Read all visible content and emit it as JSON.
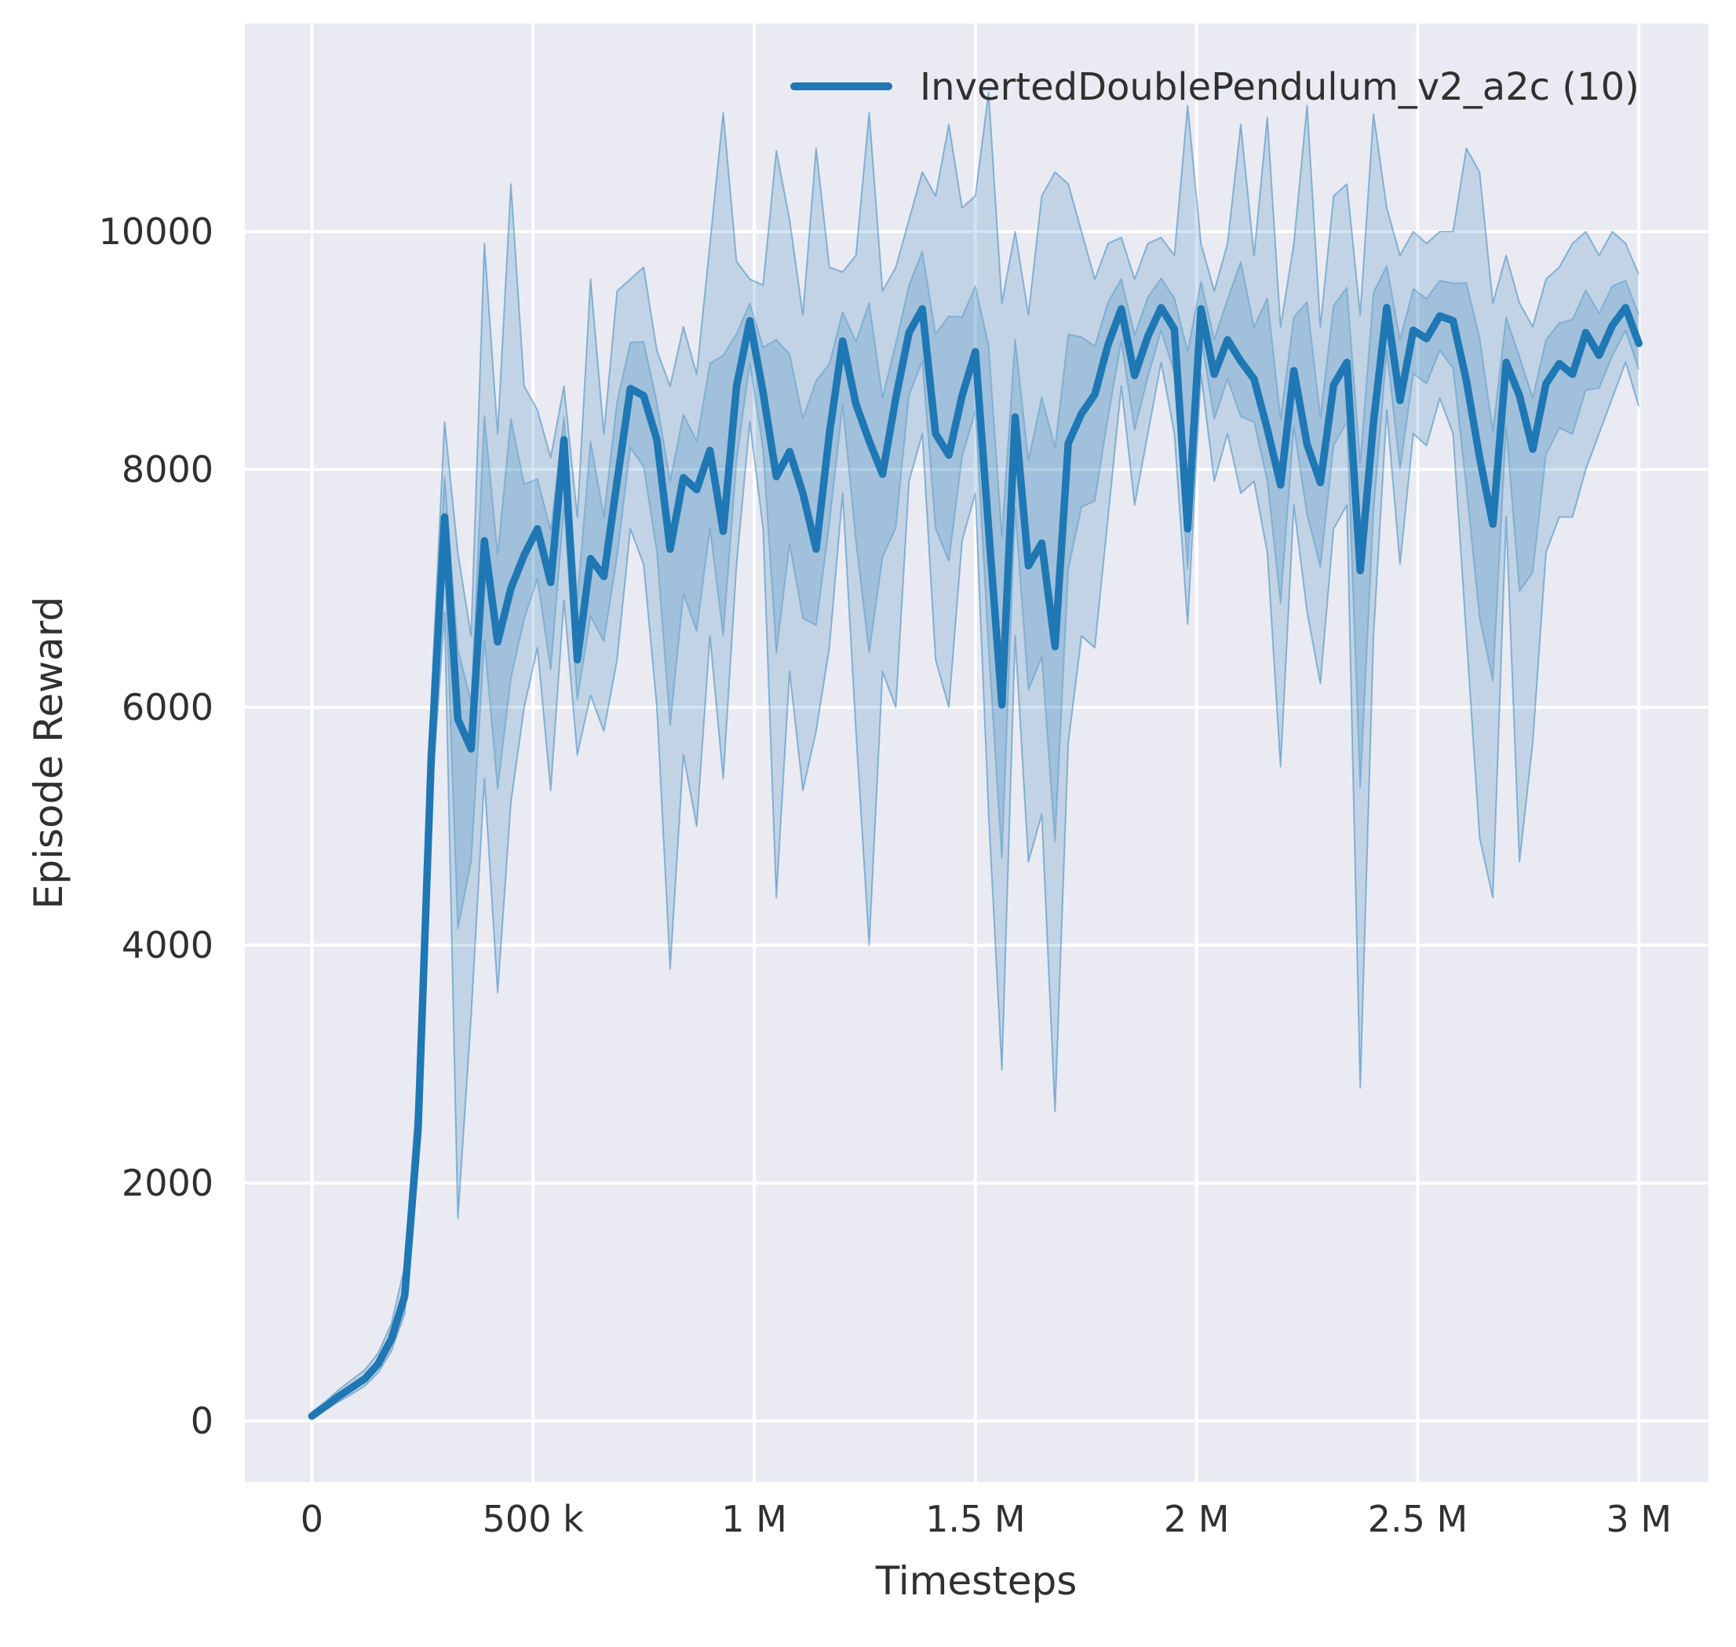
{
  "colors": {
    "line": "#1f77b4",
    "band_rgb": "31,119,180",
    "axes_bg": "#eaeaf2",
    "grid": "#ffffff",
    "text": "#303030",
    "figure_bg": "#ffffff"
  },
  "legend": {
    "label": "InvertedDoublePendulum_v2_a2c (10)"
  },
  "axes": {
    "xlabel": "Timesteps",
    "ylabel": "Episode Reward"
  },
  "chart_data": {
    "type": "line",
    "title": "",
    "xlabel": "Timesteps",
    "ylabel": "Episode Reward",
    "legend": [
      "InvertedDoublePendulum_v2_a2c (10)"
    ],
    "grid": true,
    "legend_position": "upper right",
    "x_units": "millions of timesteps",
    "xlim_M": [
      -0.1515,
      3.1575
    ],
    "ylim": [
      -515,
      11749
    ],
    "x_ticks": [
      {
        "v": 0,
        "label": "0"
      },
      {
        "v": 0.5,
        "label": "500 k"
      },
      {
        "v": 1,
        "label": "1 M"
      },
      {
        "v": 1.5,
        "label": "1.5 M"
      },
      {
        "v": 2,
        "label": "2 M"
      },
      {
        "v": 2.5,
        "label": "2.5 M"
      },
      {
        "v": 3,
        "label": "3 M"
      }
    ],
    "y_ticks": [
      {
        "v": 0,
        "label": "0"
      },
      {
        "v": 2000,
        "label": "2000"
      },
      {
        "v": 4000,
        "label": "4000"
      },
      {
        "v": 6000,
        "label": "6000"
      },
      {
        "v": 8000,
        "label": "8000"
      },
      {
        "v": 10000,
        "label": "10000"
      }
    ],
    "x": [
      0,
      0.03,
      0.06,
      0.09,
      0.12,
      0.15,
      0.18,
      0.21,
      0.24,
      0.27,
      0.3,
      0.33,
      0.36,
      0.39,
      0.42,
      0.45,
      0.48,
      0.51,
      0.54,
      0.57,
      0.6,
      0.63,
      0.66,
      0.69,
      0.72,
      0.75,
      0.78,
      0.81,
      0.84,
      0.87,
      0.9,
      0.93,
      0.96,
      0.99,
      1.02,
      1.05,
      1.08,
      1.11,
      1.14,
      1.17,
      1.2,
      1.23,
      1.26,
      1.29,
      1.32,
      1.35,
      1.38,
      1.41,
      1.44,
      1.47,
      1.5,
      1.53,
      1.56,
      1.59,
      1.62,
      1.65,
      1.68,
      1.71,
      1.74,
      1.77,
      1.8,
      1.83,
      1.86,
      1.89,
      1.92,
      1.95,
      1.98,
      2.01,
      2.04,
      2.07,
      2.1,
      2.13,
      2.16,
      2.19,
      2.22,
      2.25,
      2.28,
      2.31,
      2.34,
      2.37,
      2.4,
      2.43,
      2.46,
      2.49,
      2.52,
      2.55,
      2.58,
      2.61,
      2.64,
      2.67,
      2.7,
      2.73,
      2.76,
      2.79,
      2.82,
      2.85,
      2.88,
      2.91,
      2.94,
      2.97,
      3.0
    ],
    "mean": [
      40,
      120,
      205,
      280,
      355,
      480,
      690,
      1050,
      2450,
      5600,
      7600,
      5900,
      5650,
      7400,
      6550,
      7000,
      7280,
      7500,
      7050,
      8250,
      6400,
      7250,
      7100,
      7900,
      8680,
      8620,
      8250,
      7330,
      7930,
      7830,
      8160,
      7480,
      8700,
      9250,
      8650,
      7940,
      8150,
      7800,
      7330,
      8300,
      9080,
      8550,
      8240,
      7960,
      8600,
      9150,
      9350,
      8300,
      8120,
      8620,
      8990,
      7500,
      6020,
      8440,
      7190,
      7380,
      6510,
      8220,
      8470,
      8630,
      9050,
      9350,
      8790,
      9120,
      9360,
      9180,
      7500,
      9350,
      8800,
      9090,
      8910,
      8760,
      8340,
      7870,
      8830,
      8210,
      7890,
      8710,
      8900,
      7150,
      8400,
      9360,
      8580,
      9170,
      9100,
      9290,
      9250,
      8750,
      8100,
      7540,
      8900,
      8620,
      8170,
      8720,
      8890,
      8800,
      9150,
      8960,
      9210,
      9360,
      9060
    ],
    "lower": [
      20,
      90,
      160,
      225,
      295,
      405,
      590,
      900,
      2150,
      5200,
      6800,
      1700,
      3400,
      5400,
      3600,
      5200,
      6000,
      6500,
      5300,
      6900,
      5600,
      6100,
      5800,
      6400,
      7500,
      7200,
      6000,
      3800,
      5600,
      5000,
      6600,
      5400,
      7200,
      8400,
      7500,
      4400,
      6300,
      5300,
      5800,
      6500,
      7800,
      5800,
      4000,
      6300,
      6000,
      7900,
      8300,
      6400,
      6000,
      7400,
      7800,
      5100,
      2950,
      6600,
      4700,
      5100,
      2600,
      5700,
      6600,
      6500,
      7600,
      8700,
      7700,
      8300,
      8900,
      8300,
      6700,
      8800,
      7900,
      8300,
      7800,
      7900,
      7300,
      5500,
      7700,
      6800,
      6200,
      7500,
      7700,
      2800,
      6600,
      8500,
      7200,
      8300,
      8200,
      8600,
      8300,
      6600,
      4900,
      4400,
      7600,
      4700,
      5700,
      7300,
      7600,
      7600,
      8000,
      8300,
      8600,
      8900,
      8530
    ],
    "upper": [
      75,
      160,
      260,
      345,
      430,
      570,
      820,
      1300,
      2900,
      6100,
      8400,
      7300,
      6600,
      9900,
      8300,
      10400,
      8700,
      8500,
      8100,
      8700,
      7600,
      9600,
      8300,
      9500,
      9600,
      9700,
      9000,
      8700,
      9200,
      8800,
      9900,
      11000,
      9750,
      9600,
      9550,
      10680,
      10100,
      9300,
      10700,
      9700,
      9660,
      9800,
      11000,
      9500,
      9700,
      10100,
      10500,
      10300,
      10900,
      10200,
      10300,
      11170,
      9400,
      10000,
      9300,
      10300,
      10500,
      10400,
      10000,
      9600,
      9900,
      9950,
      9600,
      9900,
      9950,
      9800,
      11060,
      9900,
      9500,
      9900,
      10900,
      9800,
      10960,
      9200,
      9900,
      11060,
      9200,
      10300,
      10400,
      9300,
      10990,
      10200,
      9800,
      10000,
      9900,
      10000,
      10000,
      10700,
      10500,
      9400,
      9800,
      9400,
      9200,
      9600,
      9700,
      9900,
      10000,
      9800,
      10000,
      9900,
      9640
    ]
  }
}
